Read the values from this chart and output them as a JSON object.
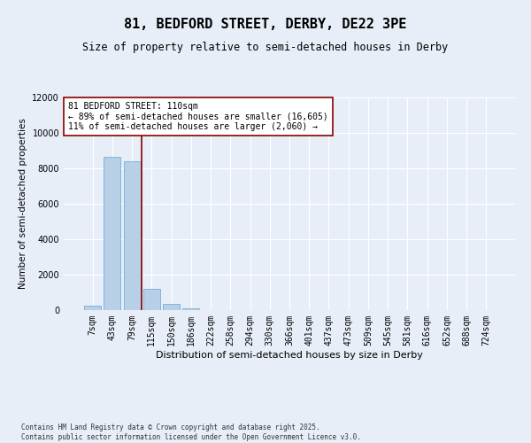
{
  "title_line1": "81, BEDFORD STREET, DERBY, DE22 3PE",
  "title_line2": "Size of property relative to semi-detached houses in Derby",
  "xlabel": "Distribution of semi-detached houses by size in Derby",
  "ylabel": "Number of semi-detached properties",
  "categories": [
    "7sqm",
    "43sqm",
    "79sqm",
    "115sqm",
    "150sqm",
    "186sqm",
    "222sqm",
    "258sqm",
    "294sqm",
    "330sqm",
    "366sqm",
    "401sqm",
    "437sqm",
    "473sqm",
    "509sqm",
    "545sqm",
    "581sqm",
    "616sqm",
    "652sqm",
    "688sqm",
    "724sqm"
  ],
  "values": [
    230,
    8650,
    8380,
    1180,
    330,
    110,
    0,
    0,
    0,
    0,
    0,
    0,
    0,
    0,
    0,
    0,
    0,
    0,
    0,
    0,
    0
  ],
  "bar_color": "#b8cfe8",
  "bar_edge_color": "#7aadd4",
  "vline_color": "#8b0000",
  "annotation_text": "81 BEDFORD STREET: 110sqm\n← 89% of semi-detached houses are smaller (16,605)\n11% of semi-detached houses are larger (2,060) →",
  "annotation_box_color": "#ffffff",
  "annotation_box_edge_color": "#8b0000",
  "ylim": [
    0,
    12000
  ],
  "yticks": [
    0,
    2000,
    4000,
    6000,
    8000,
    10000,
    12000
  ],
  "bg_color": "#e8eef7",
  "plot_bg_color": "#e8eef7",
  "grid_color": "#ffffff",
  "footer_text": "Contains HM Land Registry data © Crown copyright and database right 2025.\nContains public sector information licensed under the Open Government Licence v3.0.",
  "title1_fontsize": 11,
  "title2_fontsize": 8.5,
  "xlabel_fontsize": 8,
  "ylabel_fontsize": 7.5,
  "tick_fontsize": 7,
  "annot_fontsize": 7,
  "footer_fontsize": 5.5
}
